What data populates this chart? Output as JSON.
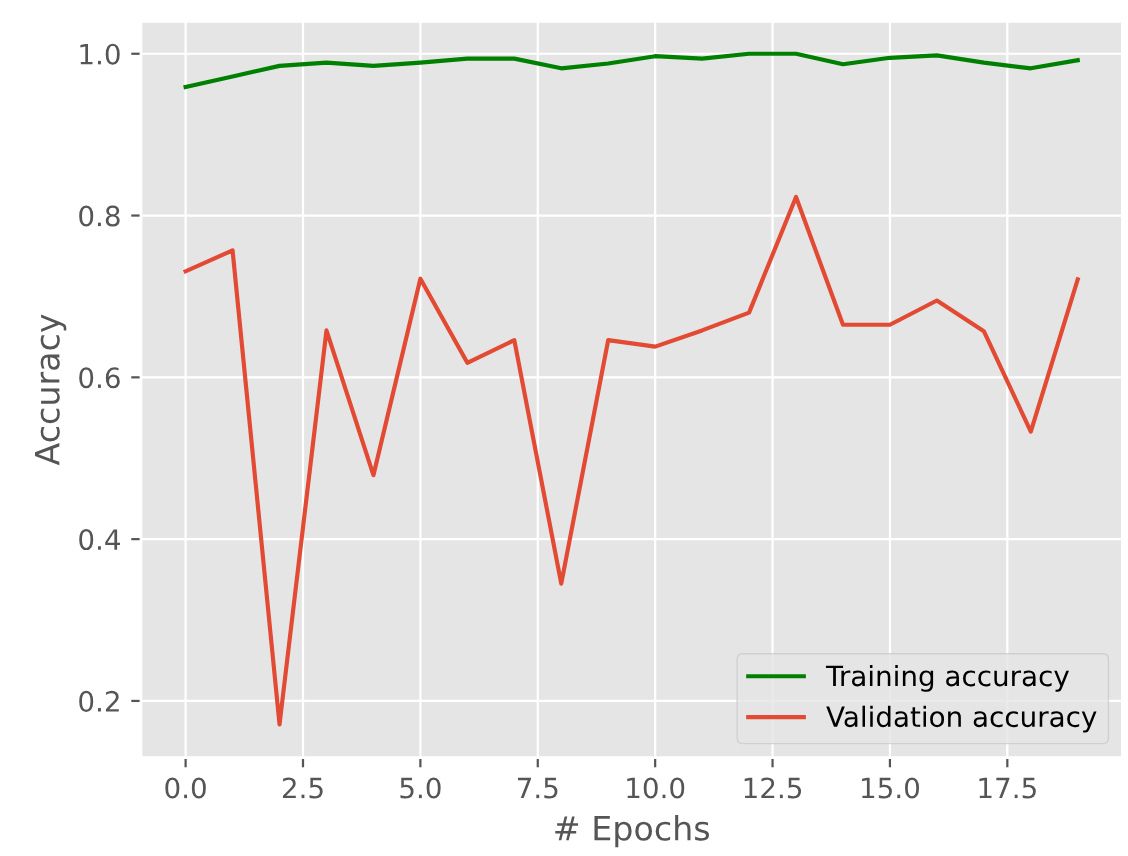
{
  "chart_data": {
    "type": "line",
    "xlabel": "# Epochs",
    "ylabel": "Accuracy",
    "x": [
      0,
      1,
      2,
      3,
      4,
      5,
      6,
      7,
      8,
      9,
      10,
      11,
      12,
      13,
      14,
      15,
      16,
      17,
      18,
      19
    ],
    "series": [
      {
        "name": "Training accuracy",
        "color": "#008000",
        "values": [
          0.959,
          0.972,
          0.985,
          0.989,
          0.985,
          0.989,
          0.994,
          0.994,
          0.982,
          0.988,
          0.997,
          0.994,
          1.0,
          1.0,
          0.987,
          0.995,
          0.998,
          0.989,
          0.982,
          0.992
        ]
      },
      {
        "name": "Validation accuracy",
        "color": "#e24a33",
        "values": [
          0.731,
          0.757,
          0.171,
          0.658,
          0.479,
          0.722,
          0.618,
          0.646,
          0.345,
          0.646,
          0.638,
          0.658,
          0.68,
          0.823,
          0.665,
          0.665,
          0.695,
          0.657,
          0.533,
          0.721
        ]
      }
    ],
    "xlim": [
      -0.95,
      19.95
    ],
    "ylim": [
      0.13,
      1.04
    ],
    "xticks": [
      {
        "value": 0,
        "label": "0.0"
      },
      2.5,
      {
        "value": 5,
        "label": "5.0"
      },
      7.5,
      {
        "value": 10,
        "label": "10.0"
      },
      12.5,
      {
        "value": 15,
        "label": "15.0"
      },
      17.5
    ],
    "yticks": [
      0.2,
      0.4,
      0.6,
      0.8,
      {
        "value": 1,
        "label": "1.0"
      }
    ],
    "grid": true,
    "legend": "bottom right",
    "marker": "none",
    "line_style": "solid"
  }
}
